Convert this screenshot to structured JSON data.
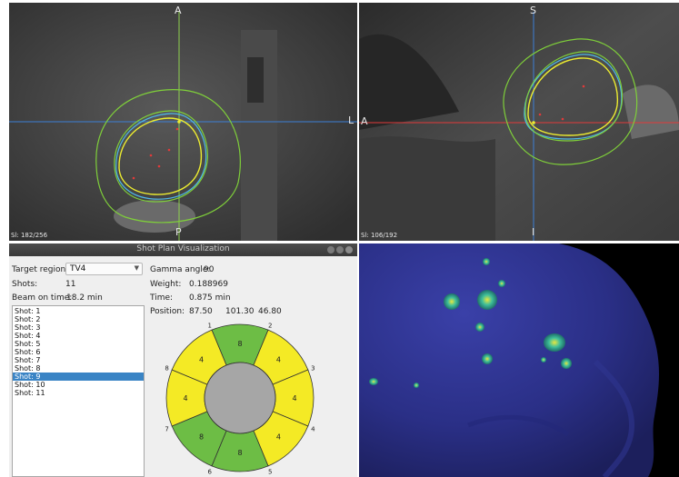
{
  "axial_view": {
    "label_top": "A",
    "label_bottom": "P",
    "label_right": "L",
    "slice": "Sl: 182/256"
  },
  "sagittal_view": {
    "label_top": "S",
    "label_bottom": "I",
    "label_left": "A",
    "slice": "Sl: 106/192"
  },
  "window": {
    "title": "Shot Plan Visualization"
  },
  "target_region": {
    "label": "Target region:",
    "value": "TV4"
  },
  "shots": {
    "label": "Shots:",
    "value": "11"
  },
  "beam_on_time": {
    "label": "Beam on time:",
    "value": "18.2 min"
  },
  "shot_list": {
    "items": [
      "Shot: 1",
      "Shot: 2",
      "Shot: 3",
      "Shot: 4",
      "Shot: 5",
      "Shot: 6",
      "Shot: 7",
      "Shot: 8",
      "Shot: 9",
      "Shot: 10",
      "Shot: 11"
    ],
    "selected_index": 8
  },
  "details": {
    "gamma_angle_label": "Gamma angle:",
    "gamma_angle_value": "90",
    "weight_label": "Weight:",
    "weight_value": "0.188969",
    "time_label": "Time:",
    "time_value": "0.875 min",
    "position_label": "Position:",
    "position_x": "87.50",
    "position_y": "101.30",
    "position_z": "46.80"
  },
  "collimator": {
    "sectors": [
      {
        "number": "1",
        "size": "8",
        "color": "#6dbd45"
      },
      {
        "number": "2",
        "size": "4",
        "color": "#f4ea25"
      },
      {
        "number": "3",
        "size": "4",
        "color": "#f4ea25"
      },
      {
        "number": "4",
        "size": "4",
        "color": "#f4ea25"
      },
      {
        "number": "5",
        "size": "8",
        "color": "#6dbd45"
      },
      {
        "number": "6",
        "size": "8",
        "color": "#6dbd45"
      },
      {
        "number": "7",
        "size": "4",
        "color": "#f4ea25"
      },
      {
        "number": "8",
        "size": "4",
        "color": "#f4ea25"
      }
    ],
    "center_color": "#a6a6a6"
  },
  "colors": {
    "selection": "#3a84c5",
    "crosshair_green": "#8fd14f",
    "crosshair_blue": "#3c7fd6",
    "crosshair_red": "#e23a3a",
    "contour_green": "#7fcf3a",
    "contour_yellow": "#ecec30",
    "contour_blue": "#4fb7e6",
    "render_background": "#000000",
    "head_surface": "#2a2f86"
  }
}
